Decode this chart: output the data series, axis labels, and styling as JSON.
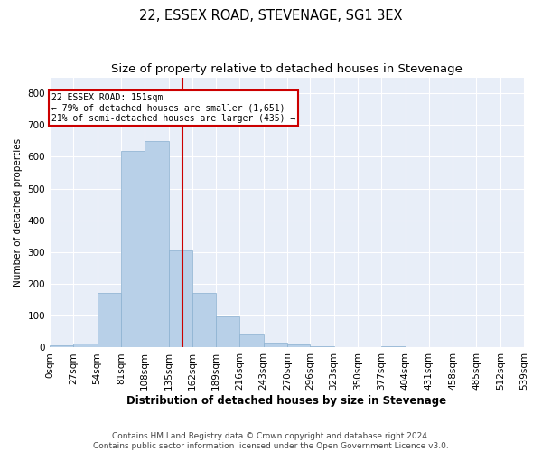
{
  "title": "22, ESSEX ROAD, STEVENAGE, SG1 3EX",
  "subtitle": "Size of property relative to detached houses in Stevenage",
  "xlabel": "Distribution of detached houses by size in Stevenage",
  "ylabel": "Number of detached properties",
  "bar_color": "#b8d0e8",
  "bar_edge_color": "#8ab0d0",
  "background_color": "#e8eef8",
  "grid_color": "#ffffff",
  "vline_x": 151,
  "vline_color": "#cc0000",
  "annotation_text": "22 ESSEX ROAD: 151sqm\n← 79% of detached houses are smaller (1,651)\n21% of semi-detached houses are larger (435) →",
  "annotation_box_color": "#cc0000",
  "bin_edges": [
    0,
    27,
    54,
    81,
    108,
    135,
    162,
    189,
    216,
    243,
    270,
    296,
    323,
    350,
    377,
    404,
    431,
    458,
    485,
    512,
    539
  ],
  "bar_heights": [
    7,
    13,
    172,
    618,
    651,
    305,
    173,
    97,
    40,
    16,
    11,
    5,
    0,
    0,
    5,
    0,
    0,
    0,
    0,
    0
  ],
  "ylim": [
    0,
    850
  ],
  "yticks": [
    0,
    100,
    200,
    300,
    400,
    500,
    600,
    700,
    800
  ],
  "footer_text": "Contains HM Land Registry data © Crown copyright and database right 2024.\nContains public sector information licensed under the Open Government Licence v3.0.",
  "title_fontsize": 10.5,
  "subtitle_fontsize": 9.5,
  "xlabel_fontsize": 8.5,
  "ylabel_fontsize": 7.5,
  "tick_fontsize": 7.5,
  "footer_fontsize": 6.5
}
